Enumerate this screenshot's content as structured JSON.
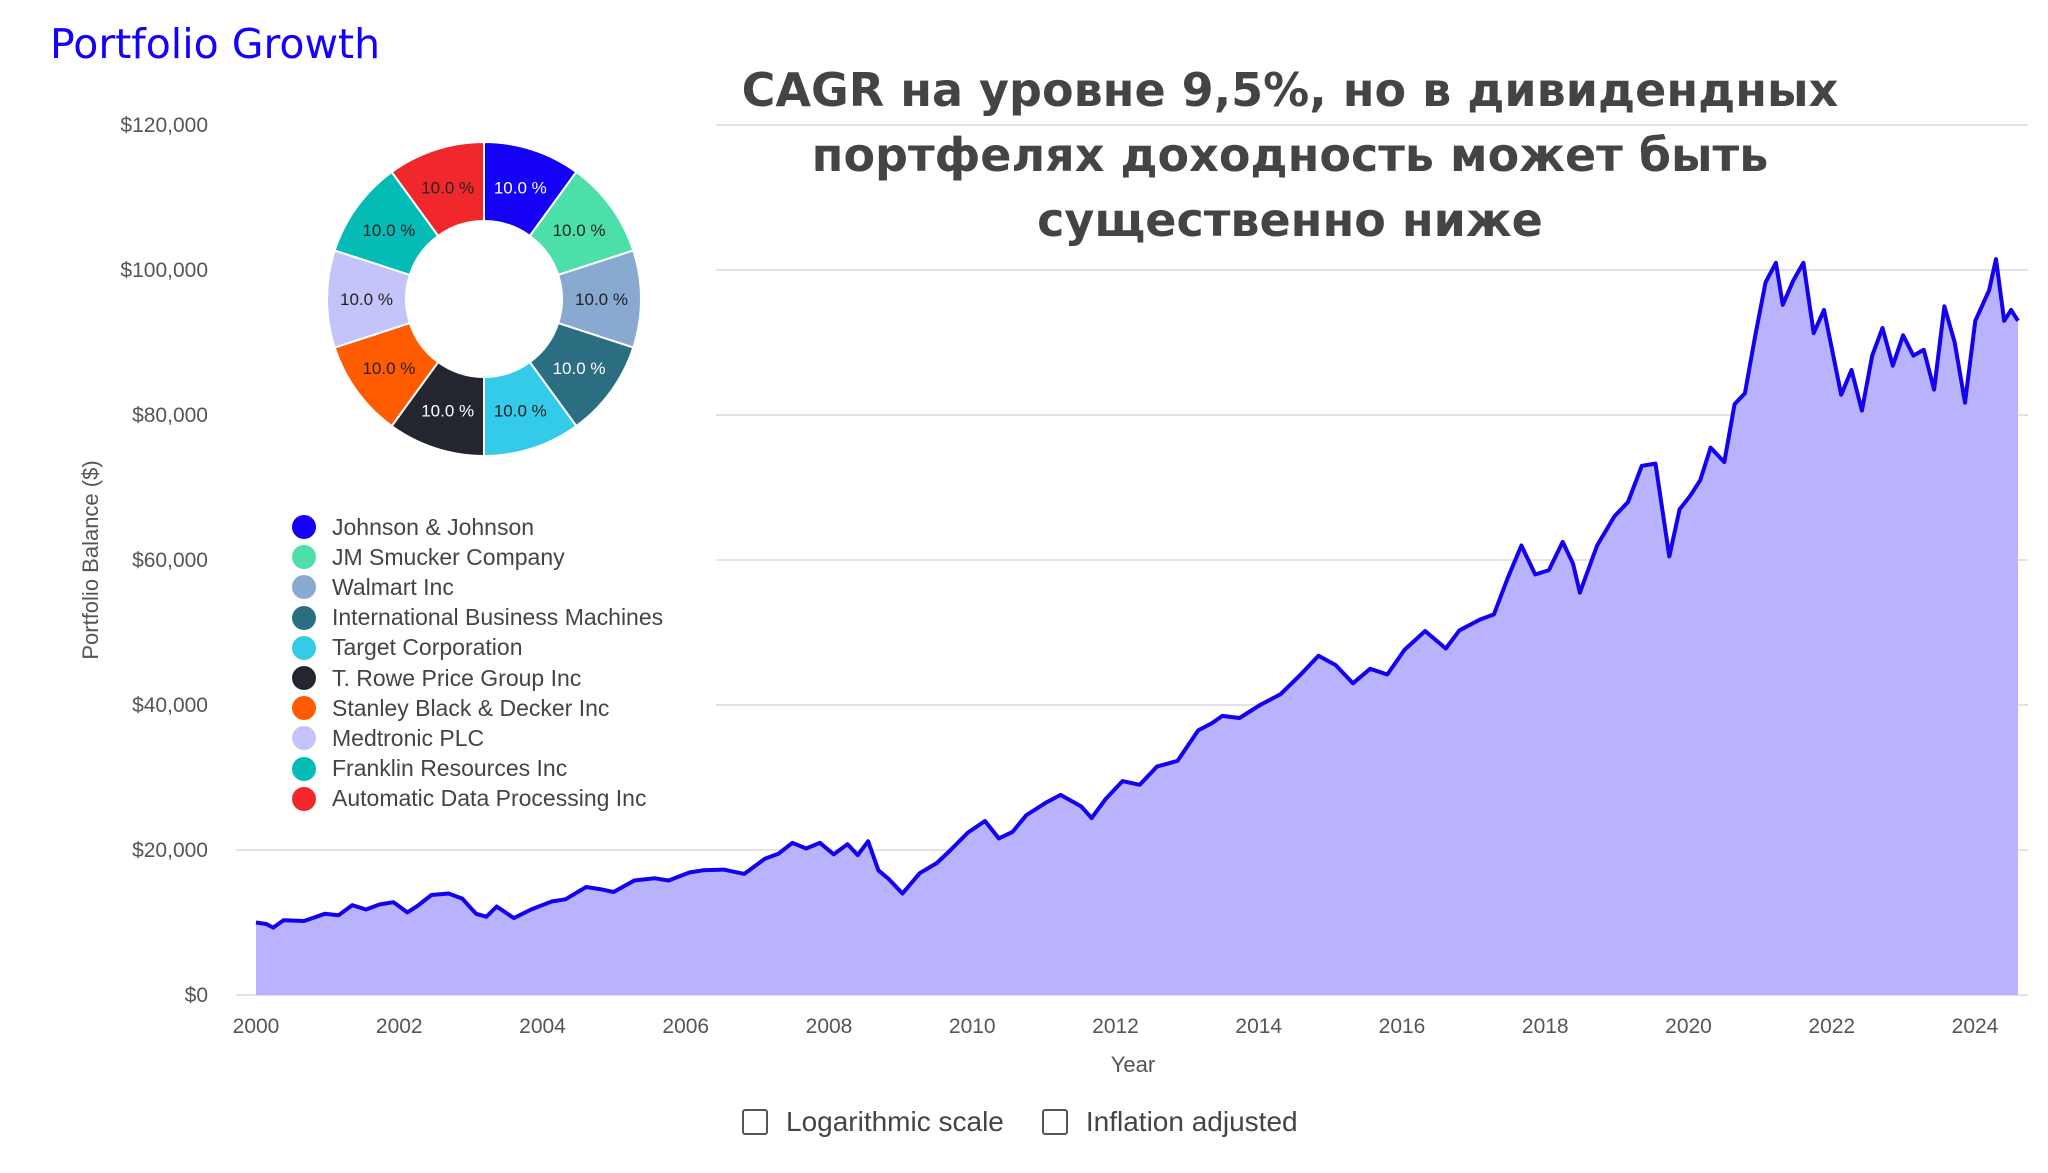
{
  "title": "Portfolio Growth",
  "headline": [
    "CAGR на уровне 9,5%, но в дивидендных",
    "портфелях доходность может быть",
    "существенно ниже"
  ],
  "controls": {
    "log_label": "Logarithmic scale",
    "log_checked": false,
    "inflation_label": "Inflation adjusted",
    "inflation_checked": false
  },
  "chart_data": [
    {
      "type": "area",
      "title": "Portfolio Growth",
      "xlabel": "Year",
      "ylabel": "Portfolio Balance ($)",
      "xlim": [
        2000,
        2024.6
      ],
      "ylim": [
        0,
        120000
      ],
      "x_ticks": [
        "2000",
        "2002",
        "2004",
        "2006",
        "2008",
        "2010",
        "2012",
        "2014",
        "2016",
        "2018",
        "2020",
        "2022",
        "2024"
      ],
      "y_ticks": [
        "$0",
        "$20,000",
        "$40,000",
        "$60,000",
        "$80,000",
        "$100,000",
        "$120,000"
      ],
      "y_tick_values": [
        0,
        20000,
        40000,
        60000,
        80000,
        100000,
        120000
      ],
      "grid": true,
      "line_color": "#1400f0",
      "fill_color": "#b8b3fc",
      "points": [
        [
          2000,
          10000
        ],
        [
          2000.15,
          9800
        ],
        [
          2000.25,
          9300
        ],
        [
          2000.4,
          10300
        ],
        [
          2000.7,
          10200
        ],
        [
          2001,
          11200
        ],
        [
          2001.2,
          11000
        ],
        [
          2001.4,
          12400
        ],
        [
          2001.6,
          11800
        ],
        [
          2001.8,
          12500
        ],
        [
          2002,
          12800
        ],
        [
          2002.2,
          11400
        ],
        [
          2002.35,
          12300
        ],
        [
          2002.55,
          13800
        ],
        [
          2002.8,
          14000
        ],
        [
          2003,
          13300
        ],
        [
          2003.2,
          11200
        ],
        [
          2003.35,
          10800
        ],
        [
          2003.5,
          12200
        ],
        [
          2003.75,
          10600
        ],
        [
          2004,
          11800
        ],
        [
          2004.3,
          12900
        ],
        [
          2004.5,
          13200
        ],
        [
          2004.8,
          14900
        ],
        [
          2005,
          14600
        ],
        [
          2005.2,
          14200
        ],
        [
          2005.5,
          15800
        ],
        [
          2005.8,
          16100
        ],
        [
          2006,
          15800
        ],
        [
          2006.3,
          16900
        ],
        [
          2006.5,
          17200
        ],
        [
          2006.8,
          17300
        ],
        [
          2007.1,
          16700
        ],
        [
          2007.4,
          18800
        ],
        [
          2007.6,
          19500
        ],
        [
          2007.8,
          21000
        ],
        [
          2008,
          20200
        ],
        [
          2008.2,
          21000
        ],
        [
          2008.4,
          19400
        ],
        [
          2008.6,
          20800
        ],
        [
          2008.75,
          19300
        ],
        [
          2008.9,
          21200
        ],
        [
          2009.05,
          17200
        ],
        [
          2009.2,
          16000
        ],
        [
          2009.4,
          14000
        ],
        [
          2009.65,
          16800
        ],
        [
          2009.9,
          18200
        ],
        [
          2010.1,
          20000
        ],
        [
          2010.35,
          22400
        ],
        [
          2010.6,
          24000
        ],
        [
          2010.8,
          21600
        ],
        [
          2011,
          22500
        ],
        [
          2011.2,
          24800
        ],
        [
          2011.5,
          26600
        ],
        [
          2011.7,
          27600
        ],
        [
          2012,
          26000
        ],
        [
          2012.15,
          24400
        ],
        [
          2012.35,
          27000
        ],
        [
          2012.6,
          29500
        ],
        [
          2012.85,
          29000
        ],
        [
          2013.1,
          31500
        ],
        [
          2013.4,
          32300
        ],
        [
          2013.7,
          36500
        ],
        [
          2013.9,
          37500
        ],
        [
          2014.05,
          38500
        ],
        [
          2014.3,
          38200
        ],
        [
          2014.6,
          40000
        ],
        [
          2014.9,
          41500
        ],
        [
          2015.2,
          44300
        ],
        [
          2015.45,
          46800
        ],
        [
          2015.7,
          45500
        ],
        [
          2015.95,
          43000
        ],
        [
          2016.2,
          45000
        ],
        [
          2016.45,
          44200
        ],
        [
          2016.7,
          47600
        ],
        [
          2017,
          50200
        ],
        [
          2017.3,
          47800
        ],
        [
          2017.5,
          50300
        ],
        [
          2017.8,
          51800
        ],
        [
          2018,
          52500
        ],
        [
          2018.2,
          57500
        ],
        [
          2018.4,
          62000
        ],
        [
          2018.6,
          58000
        ],
        [
          2018.8,
          58600
        ],
        [
          2019,
          62500
        ],
        [
          2019.15,
          59500
        ],
        [
          2019.25,
          55500
        ],
        [
          2019.5,
          62000
        ],
        [
          2019.75,
          66000
        ],
        [
          2019.95,
          68000
        ],
        [
          2020.15,
          73000
        ],
        [
          2020.35,
          73300
        ],
        [
          2020.55,
          60500
        ],
        [
          2020.7,
          67000
        ],
        [
          2020.85,
          68800
        ],
        [
          2021,
          71000
        ],
        [
          2021.15,
          75500
        ],
        [
          2021.35,
          73500
        ],
        [
          2021.5,
          81500
        ],
        [
          2021.65,
          83000
        ],
        [
          2021.8,
          91000
        ],
        [
          2021.95,
          98300
        ],
        [
          2022.1,
          101000
        ],
        [
          2022.2,
          95200
        ],
        [
          2022.35,
          98500
        ],
        [
          2022.5,
          101000
        ],
        [
          2022.65,
          91300
        ],
        [
          2022.8,
          94500
        ],
        [
          2023.05,
          82800
        ],
        [
          2023.2,
          86200
        ],
        [
          2023.35,
          80600
        ],
        [
          2023.5,
          88200
        ],
        [
          2023.65,
          92000
        ],
        [
          2023.8,
          86800
        ],
        [
          2023.95,
          91000
        ],
        [
          2024.1,
          88200
        ],
        [
          2024.25,
          89000
        ],
        [
          2024.4,
          83500
        ],
        [
          2024.55,
          95000
        ],
        [
          2024.7,
          90000
        ],
        [
          2024.85,
          81700
        ],
        [
          2025.0,
          93000
        ],
        [
          2025.2,
          97200
        ],
        [
          2025.3,
          101500
        ],
        [
          2025.42,
          93000
        ],
        [
          2025.52,
          94500
        ],
        [
          2025.62,
          93000
        ]
      ]
    },
    {
      "type": "pie",
      "donut": true,
      "labels": [
        "Johnson & Johnson",
        "JM Smucker Company",
        "Walmart Inc",
        "International Business Machines",
        "Target Corporation",
        "T. Rowe Price Group Inc",
        "Stanley Black & Decker Inc",
        "Medtronic PLC",
        "Franklin Resources Inc",
        "Automatic Data Processing Inc"
      ],
      "values": [
        10,
        10,
        10,
        10,
        10,
        10,
        10,
        10,
        10,
        10
      ],
      "value_labels": [
        "10.0 %",
        "10.0 %",
        "10.0 %",
        "10.0 %",
        "10.0 %",
        "10.0 %",
        "10.0 %",
        "10.0 %",
        "10.0 %",
        "10.0 %"
      ],
      "colors": [
        "#1400f5",
        "#4cdfa9",
        "#88a9d0",
        "#2b6e82",
        "#33cbe8",
        "#23262f",
        "#ff5b00",
        "#c4c3fa",
        "#05bbb5",
        "#f0282c"
      ],
      "label_colors": [
        "#fff",
        "#222",
        "#222",
        "#fff",
        "#222",
        "#fff",
        "#222",
        "#222",
        "#222",
        "#222"
      ],
      "legend": "left"
    }
  ]
}
